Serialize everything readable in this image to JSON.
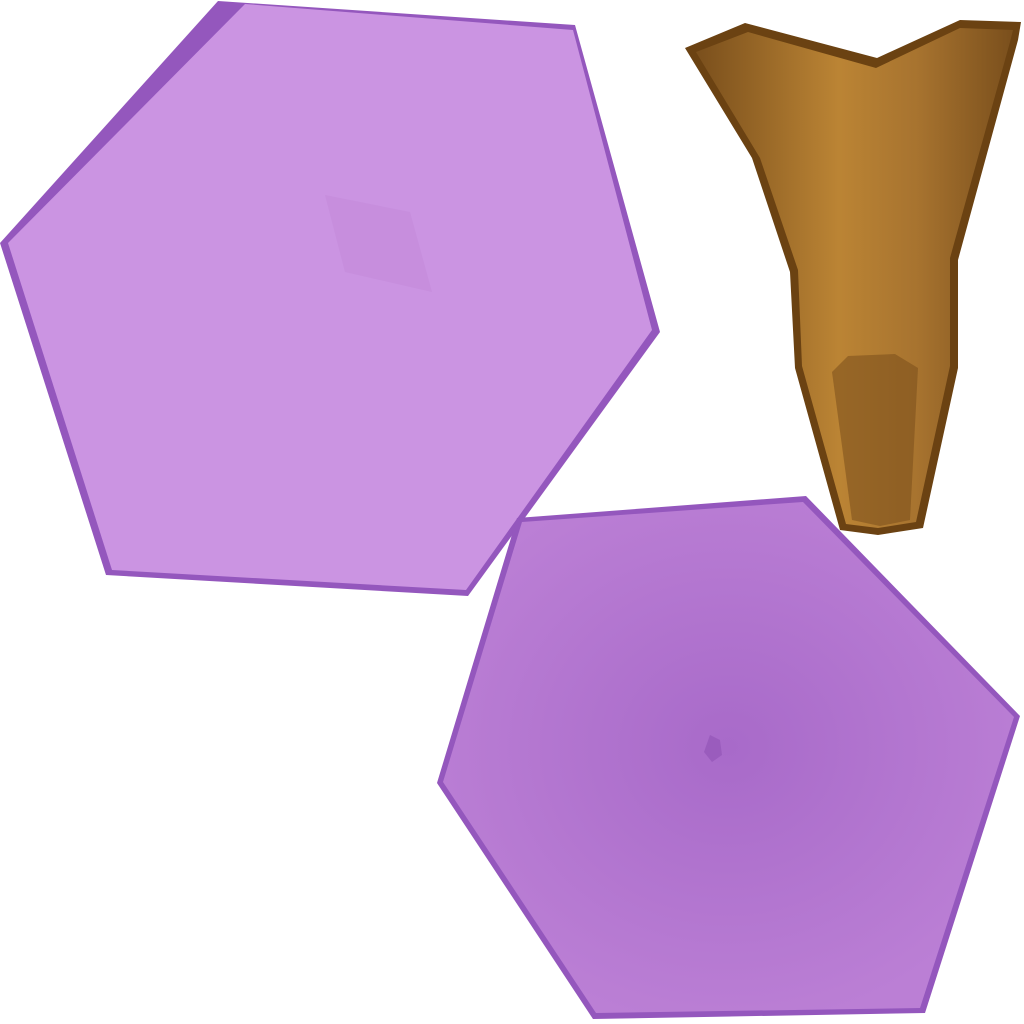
{
  "texture_atlas": {
    "background_color": "#ffffff",
    "pieces": [
      {
        "name": "top-hexagon-face",
        "shape": "hexagon",
        "fill_color": "#cb94e2",
        "edge_color": "#9457bd",
        "center_mark_color": "#c48bdb"
      },
      {
        "name": "bottom-hexagon-face",
        "shape": "hexagon",
        "fill_color": "#bb7fd5",
        "edge_color": "#9457bd",
        "center_color": "#a86ac9",
        "center_mark_color": "#9a5cbd"
      },
      {
        "name": "stem-piece",
        "shape": "tapered-stem",
        "fill_color": "#a7732f",
        "shadow_color": "#7a4f1c",
        "highlight_color": "#bb8434",
        "edge_color": "#6b4212"
      }
    ]
  }
}
